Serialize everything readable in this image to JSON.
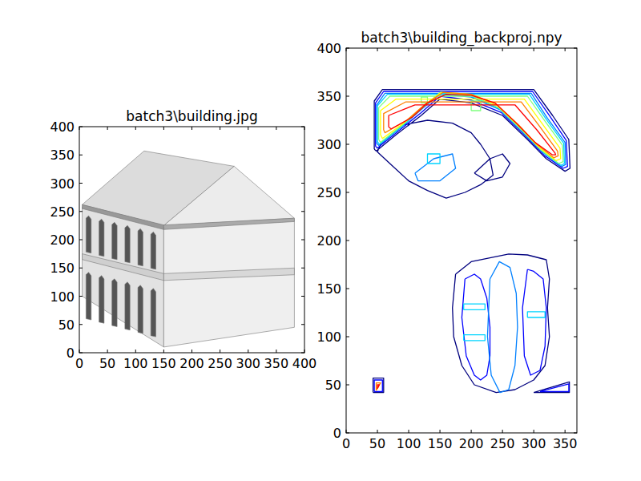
{
  "chart_data": [
    {
      "type": "image",
      "title": "batch3\\building.jpg",
      "xlim": [
        0,
        400
      ],
      "ylim": [
        0,
        400
      ],
      "xticks": [
        0,
        50,
        100,
        150,
        200,
        250,
        300,
        350,
        400
      ],
      "yticks": [
        0,
        50,
        100,
        150,
        200,
        250,
        300,
        350,
        400
      ]
    },
    {
      "type": "contour",
      "title": "batch3\\building_backproj.npy",
      "xlim": [
        0,
        369
      ],
      "ylim": [
        0,
        400
      ],
      "xticks": [
        0,
        50,
        100,
        150,
        200,
        250,
        300,
        350
      ],
      "yticks": [
        0,
        50,
        100,
        150,
        200,
        250,
        300,
        350,
        400
      ],
      "series": [
        {
          "color": "#00007f",
          "x": [
            45,
            45,
            58,
            300,
            330,
            356,
            358,
            350,
            320,
            290,
            250,
            200,
            150,
            120,
            80,
            48,
            45,
            null,
            55,
            90,
            130,
            170,
            200,
            215,
            230,
            235,
            215,
            190,
            160,
            130,
            100,
            70,
            50,
            55,
            null,
            205,
            230,
            250,
            262,
            250,
            225,
            205,
            null,
            175,
            200,
            230,
            260,
            290,
            320,
            325,
            322,
            325,
            318,
            300,
            270,
            240,
            205,
            185,
            172,
            170,
            175,
            null,
            43,
            60,
            60,
            43,
            43,
            null,
            300,
            357,
            357,
            300
          ],
          "y": [
            295,
            345,
            357,
            357,
            330,
            305,
            275,
            272,
            285,
            305,
            330,
            343,
            347,
            330,
            310,
            293,
            295,
            null,
            300,
            320,
            325,
            322,
            312,
            300,
            285,
            268,
            258,
            250,
            244,
            252,
            262,
            280,
            292,
            300,
            null,
            270,
            285,
            290,
            280,
            266,
            262,
            270,
            null,
            165,
            178,
            182,
            186,
            185,
            180,
            160,
            130,
            100,
            70,
            55,
            45,
            42,
            50,
            70,
            100,
            130,
            165,
            null,
            42,
            42,
            57,
            57,
            42,
            null,
            42,
            42,
            53,
            42
          ]
        },
        {
          "color": "#0000ff",
          "x": [
            47,
            47,
            60,
            298,
            326,
            352,
            354,
            347,
            318,
            288,
            248,
            200,
            150,
            120,
            82,
            50,
            47,
            null,
            190,
            205,
            215,
            225,
            230,
            230,
            225,
            215,
            205,
            192,
            185,
            190,
            null,
            290,
            300,
            315,
            320,
            318,
            310,
            295,
            285,
            282,
            290,
            null,
            45,
            58,
            58,
            45,
            45,
            null,
            310,
            356,
            356,
            310
          ],
          "y": [
            298,
            343,
            355,
            355,
            329,
            304,
            277,
            275,
            288,
            308,
            333,
            346,
            350,
            333,
            313,
            296,
            298,
            null,
            160,
            165,
            160,
            140,
            110,
            80,
            60,
            55,
            60,
            80,
            120,
            160,
            null,
            170,
            168,
            160,
            130,
            90,
            65,
            60,
            80,
            130,
            170,
            null,
            43,
            43,
            55,
            55,
            43,
            null,
            43,
            43,
            51,
            43
          ]
        },
        {
          "color": "#0080ff",
          "x": [
            49,
            49,
            62,
            296,
            322,
            350,
            351,
            345,
            316,
            285,
            246,
            200,
            150,
            120,
            85,
            52,
            49,
            null,
            230,
            245,
            262,
            272,
            274,
            270,
            260,
            246,
            232,
            226,
            230,
            null,
            110,
            140,
            170,
            175,
            150,
            115,
            110
          ],
          "y": [
            301,
            341,
            353,
            353,
            327,
            302,
            279,
            277,
            291,
            311,
            336,
            349,
            352,
            336,
            316,
            299,
            301,
            null,
            160,
            178,
            172,
            145,
            110,
            70,
            45,
            42,
            60,
            100,
            160,
            null,
            270,
            285,
            290,
            275,
            262,
            262,
            270
          ]
        },
        {
          "color": "#00d4ff",
          "x": [
            50,
            50,
            66,
            293,
            320,
            348,
            349,
            343,
            314,
            284,
            245,
            200,
            150,
            121,
            86,
            53,
            50,
            null,
            188,
            222,
            222,
            188,
            188,
            null,
            188,
            222,
            222,
            188,
            188,
            null,
            290,
            318,
            318,
            290,
            290,
            null,
            130,
            150,
            150,
            130,
            130
          ],
          "y": [
            303,
            340,
            352,
            352,
            326,
            301,
            280,
            278,
            292,
            312,
            337,
            350,
            353,
            337,
            317,
            300,
            303,
            null,
            128,
            128,
            134,
            134,
            128,
            null,
            96,
            96,
            102,
            102,
            96,
            null,
            120,
            120,
            126,
            126,
            120,
            null,
            280,
            280,
            290,
            290,
            280
          ]
        },
        {
          "color": "#7fff7f",
          "x": [
            52,
            52,
            70,
            290,
            318,
            346,
            347,
            340,
            312,
            282,
            244,
            200,
            150,
            122,
            88,
            55,
            52,
            null,
            200,
            215,
            215,
            200,
            200,
            null,
            120,
            130,
            130,
            120,
            120
          ],
          "y": [
            305,
            338,
            350,
            350,
            324,
            299,
            282,
            280,
            294,
            314,
            338,
            351,
            354,
            338,
            319,
            302,
            305,
            null,
            335,
            335,
            345,
            345,
            335,
            null,
            343,
            343,
            349,
            349,
            343
          ]
        },
        {
          "color": "#ffff00",
          "x": [
            55,
            55,
            80,
            285,
            314,
            342,
            343,
            336,
            308,
            279,
            242,
            200,
            152,
            124,
            92,
            58,
            55
          ],
          "y": [
            310,
            335,
            347,
            347,
            321,
            296,
            285,
            283,
            297,
            317,
            340,
            352,
            354,
            340,
            322,
            306,
            310
          ]
        },
        {
          "color": "#ff7f00",
          "x": [
            60,
            60,
            95,
            280,
            310,
            338,
            339,
            332,
            305,
            276,
            240,
            200,
            155,
            127,
            97,
            62,
            60,
            null,
            48,
            55,
            48,
            48
          ],
          "y": [
            315,
            332,
            344,
            344,
            318,
            293,
            288,
            286,
            300,
            320,
            342,
            352,
            354,
            342,
            325,
            312,
            315,
            null,
            44,
            52,
            52,
            44
          ]
        },
        {
          "color": "#ff0000",
          "x": [
            68,
            68,
            110,
            270,
            305,
            334,
            335,
            330,
            302,
            272,
            238,
            200,
            160,
            130,
            105,
            72,
            68,
            null,
            50,
            53,
            50,
            50
          ],
          "y": [
            318,
            330,
            341,
            341,
            315,
            291,
            289,
            289,
            302,
            322,
            343,
            351,
            352,
            343,
            328,
            316,
            318,
            null,
            46,
            50,
            50,
            46
          ]
        }
      ]
    }
  ]
}
